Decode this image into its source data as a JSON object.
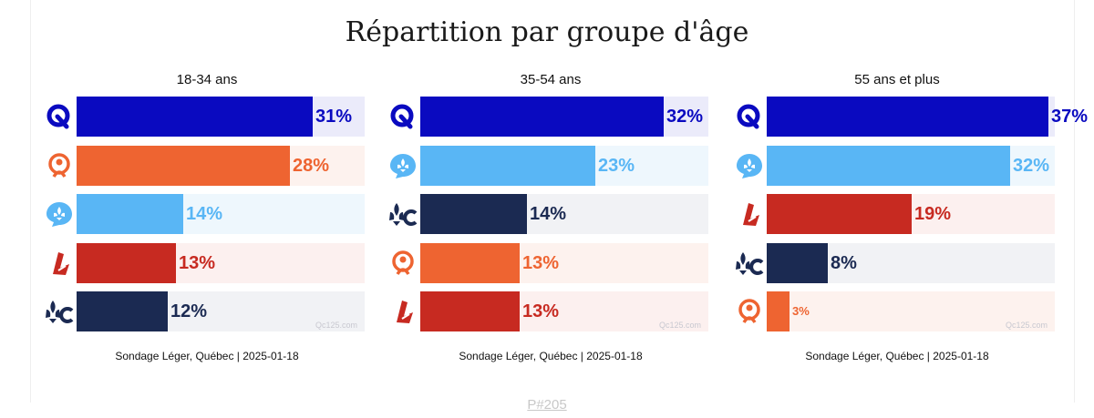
{
  "chart_data": {
    "type": "bar",
    "title": "Répartition par groupe d'âge",
    "xlim": [
      0,
      38
    ],
    "parties": {
      "PQ": {
        "color": "#0a0ac0",
        "track": "#ebebfa",
        "text": "#0a0ac0",
        "icon": "pq-logo-icon"
      },
      "PCQ": {
        "color": "#ee6431",
        "track": "#fdf2ee",
        "text": "#ee6431",
        "icon": "conservative-logo-icon"
      },
      "QS": {
        "color": "#59b6f5",
        "track": "#eef7fd",
        "text": "#59b6f5",
        "icon": "qs-logo-icon"
      },
      "PLQ": {
        "color": "#c72a21",
        "track": "#fcf0ef",
        "text": "#c72a21",
        "icon": "liberal-logo-icon"
      },
      "CAQ": {
        "color": "#1b2a52",
        "track": "#f1f2f5",
        "text": "#1b2a52",
        "icon": "caq-logo-icon"
      }
    },
    "charts": [
      {
        "title": "18-34 ans",
        "source": "Sondage Léger, Québec | 2025-01-18",
        "watermark": "Qc125.com",
        "bars": [
          {
            "party": "PQ",
            "value": 31,
            "label": "31%"
          },
          {
            "party": "PCQ",
            "value": 28,
            "label": "28%"
          },
          {
            "party": "QS",
            "value": 14,
            "label": "14%"
          },
          {
            "party": "PLQ",
            "value": 13,
            "label": "13%"
          },
          {
            "party": "CAQ",
            "value": 12,
            "label": "12%"
          }
        ]
      },
      {
        "title": "35-54 ans",
        "source": "Sondage Léger, Québec | 2025-01-18",
        "watermark": "Qc125.com",
        "bars": [
          {
            "party": "PQ",
            "value": 32,
            "label": "32%"
          },
          {
            "party": "QS",
            "value": 23,
            "label": "23%"
          },
          {
            "party": "CAQ",
            "value": 14,
            "label": "14%"
          },
          {
            "party": "PCQ",
            "value": 13,
            "label": "13%"
          },
          {
            "party": "PLQ",
            "value": 13,
            "label": "13%"
          }
        ]
      },
      {
        "title": "55 ans et plus",
        "source": "Sondage Léger, Québec | 2025-01-18",
        "watermark": "Qc125.com",
        "bars": [
          {
            "party": "PQ",
            "value": 37,
            "label": "37%"
          },
          {
            "party": "QS",
            "value": 32,
            "label": "32%"
          },
          {
            "party": "PLQ",
            "value": 19,
            "label": "19%"
          },
          {
            "party": "CAQ",
            "value": 8,
            "label": "8%"
          },
          {
            "party": "PCQ",
            "value": 3,
            "label": "3%"
          }
        ]
      }
    ]
  },
  "footer": {
    "text": "P#205"
  }
}
